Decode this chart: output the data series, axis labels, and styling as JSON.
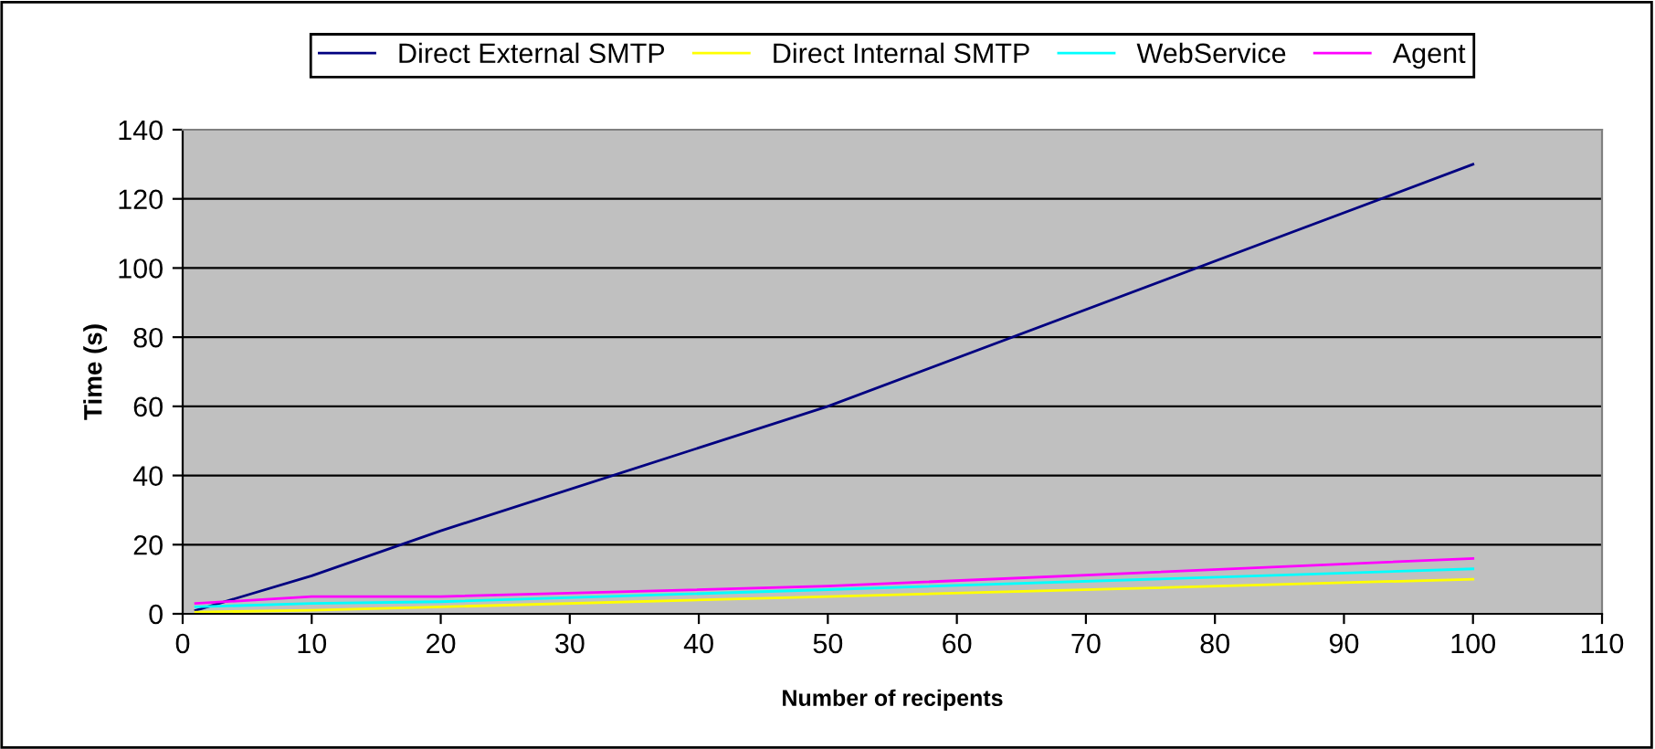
{
  "chart_data": {
    "type": "line",
    "xlabel": "Number of recipents",
    "ylabel": "Time (s)",
    "x": [
      1,
      10,
      20,
      50,
      100
    ],
    "series": [
      {
        "name": "Direct External SMTP",
        "color": "#000080",
        "values": [
          1,
          11,
          24,
          60,
          130
        ]
      },
      {
        "name": "Direct Internal SMTP",
        "color": "#ffff00",
        "values": [
          0.5,
          1,
          2,
          5,
          10
        ]
      },
      {
        "name": "WebService",
        "color": "#00ffff",
        "values": [
          2,
          3,
          3.5,
          7,
          13
        ]
      },
      {
        "name": "Agent",
        "color": "#ff00ff",
        "values": [
          3,
          5,
          5,
          8,
          16
        ]
      }
    ],
    "xlim": [
      0,
      110
    ],
    "xticks": [
      0,
      10,
      20,
      30,
      40,
      50,
      60,
      70,
      80,
      90,
      100,
      110
    ],
    "ylim": [
      0,
      140
    ],
    "yticks": [
      0,
      20,
      40,
      60,
      80,
      100,
      120,
      140
    ],
    "grid": "y",
    "legend": "top",
    "marker": "none",
    "line_style": "solid"
  }
}
